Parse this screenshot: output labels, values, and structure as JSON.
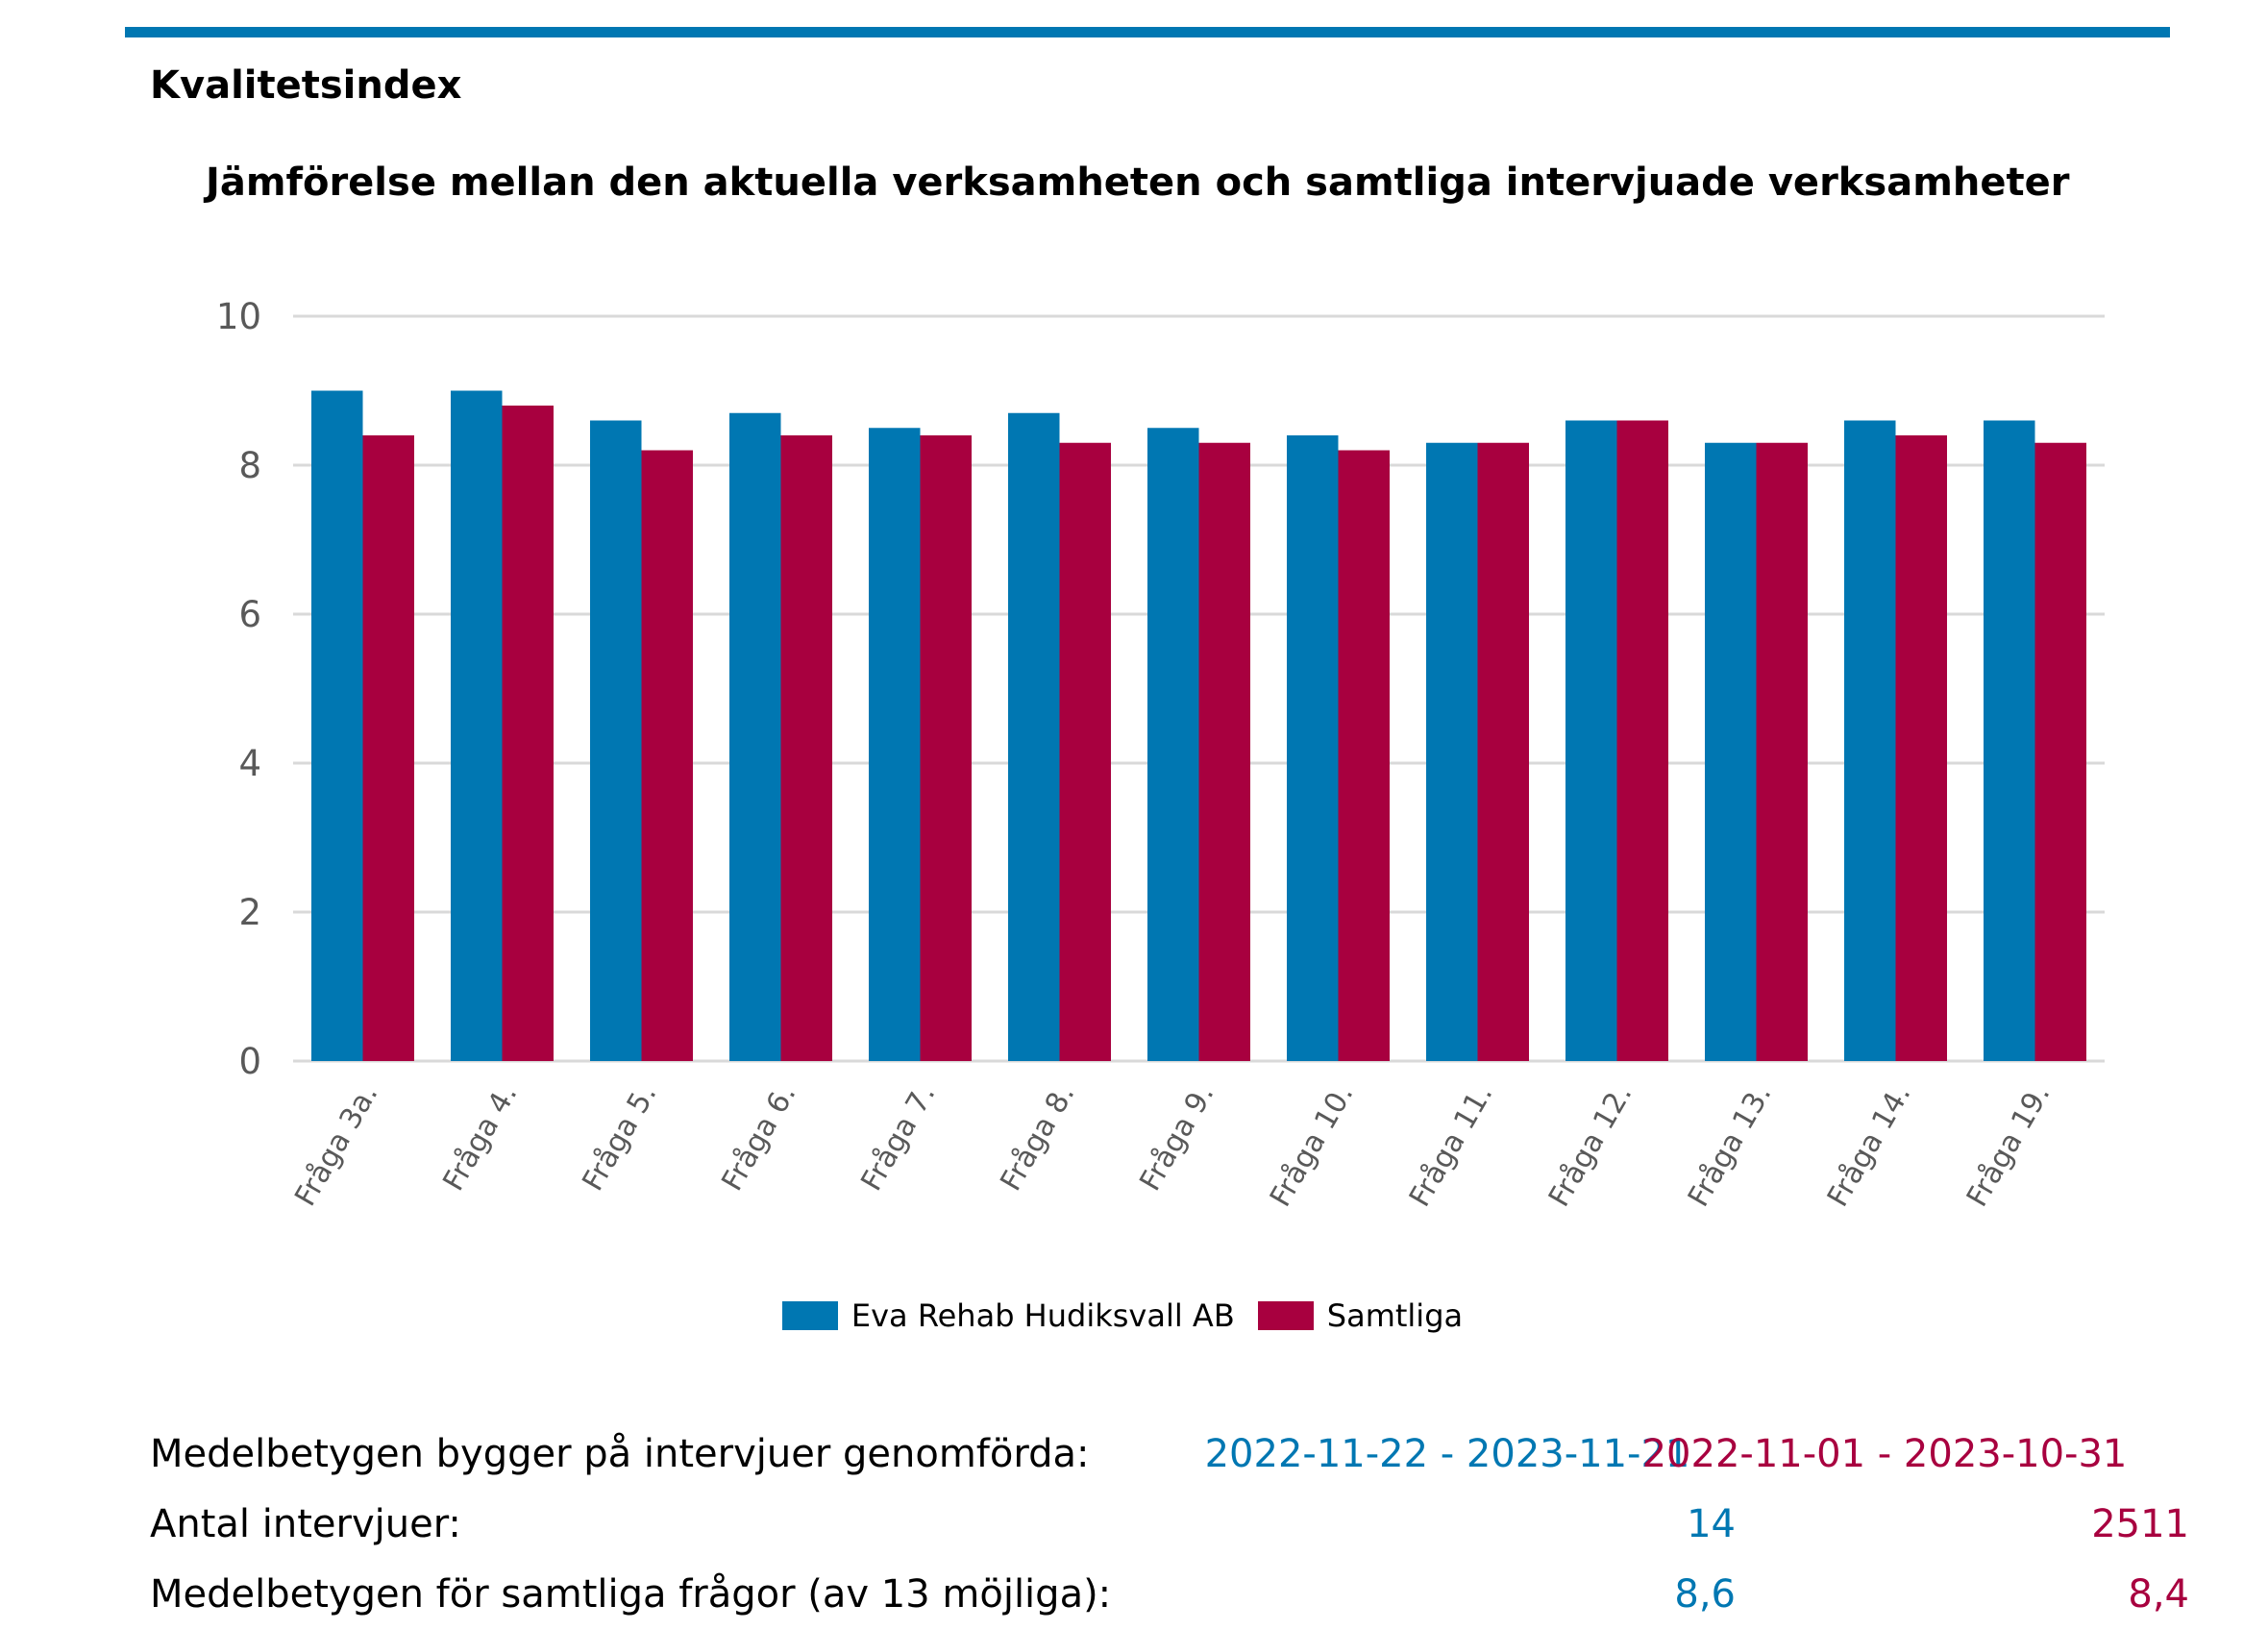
{
  "header": {
    "section_title": "Kvalitetsindex",
    "chart_title": "Jämförelse mellan den aktuella verksamheten och samtliga intervjuade verksamheter"
  },
  "colors": {
    "series1": "#0077b2",
    "series2": "#a8003f",
    "grid": "#d9d9d9",
    "tick_text": "#595959"
  },
  "chart_data": {
    "type": "bar",
    "title": "Jämförelse mellan den aktuella verksamheten och samtliga intervjuade verksamheter",
    "categories": [
      "Fråga 3a.",
      "Fråga 4.",
      "Fråga 5.",
      "Fråga 6.",
      "Fråga 7.",
      "Fråga 8.",
      "Fråga 9.",
      "Fråga 10.",
      "Fråga 11.",
      "Fråga 12.",
      "Fråga 13.",
      "Fråga 14.",
      "Fråga 19."
    ],
    "series": [
      {
        "name": "Eva Rehab Hudiksvall AB",
        "values": [
          9.0,
          9.0,
          8.6,
          8.7,
          8.5,
          8.7,
          8.5,
          8.4,
          8.3,
          8.6,
          8.3,
          8.6,
          8.6
        ]
      },
      {
        "name": "Samtliga",
        "values": [
          8.4,
          8.8,
          8.2,
          8.4,
          8.4,
          8.3,
          8.3,
          8.2,
          8.3,
          8.6,
          8.3,
          8.4,
          8.3
        ]
      }
    ],
    "yticks": [
      "0",
      "2",
      "4",
      "6",
      "8",
      "10"
    ],
    "ylim": [
      0,
      10
    ],
    "xlabel": "",
    "ylabel": "",
    "grid": true,
    "legend_position": "bottom"
  },
  "summary": {
    "rows": [
      {
        "label": "Medelbetygen bygger på intervjuer genomförda:",
        "v1": "2022-11-22 - 2023-11-21",
        "v2": "2022-11-01 - 2023-10-31"
      },
      {
        "label": "Antal intervjuer:",
        "v1": "14",
        "v2": "2511"
      },
      {
        "label": "Medelbetygen för samtliga frågor (av 13 möjliga):",
        "v1": "8,6",
        "v2": "8,4"
      }
    ]
  }
}
